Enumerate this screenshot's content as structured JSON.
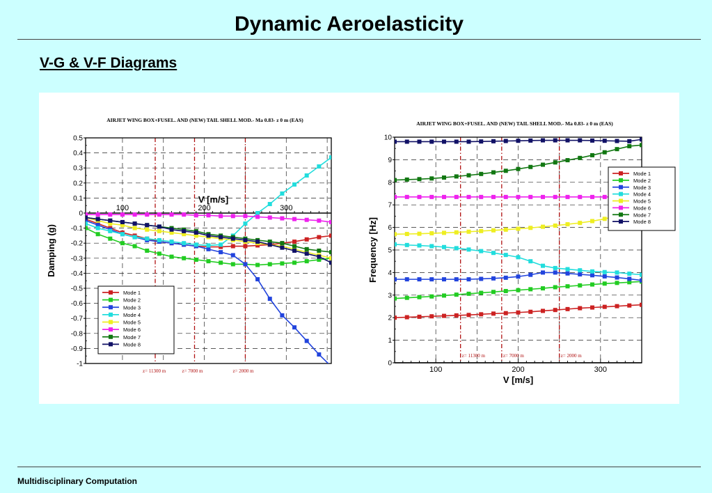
{
  "slide": {
    "title": "Dynamic Aeroelasticity",
    "subtitle": "V-G & V-F Diagrams",
    "footer": "Multidisciplinary Computation"
  },
  "chart_data": [
    {
      "type": "line",
      "title": "AIRJET WING BOX+FUSEL. AND (NEW) TAIL SHELL MOD.- Ma 0.83- z 0 m (EAS)",
      "xlabel": "V [m/s]",
      "ylabel": "Damping    (g)",
      "xlim": [
        55,
        355
      ],
      "ylim": [
        -1,
        0.5
      ],
      "xticks": [
        100,
        200,
        300
      ],
      "yticks": [
        0.5,
        0.4,
        0.3,
        0.2,
        0.1,
        0,
        -0.1,
        -0.2,
        -0.3,
        -0.4,
        -0.5,
        -0.6,
        -0.7,
        -0.8,
        -0.9,
        -1
      ],
      "ytick_labels": [
        "0.5",
        "0.4",
        "0.3",
        "0.2",
        "0.1",
        "0",
        "-0.1",
        "-0.2",
        "-0.3",
        "-0.4",
        "-0.5",
        "-0.6",
        "-0.7",
        "-0.8",
        "-0.9",
        "-1"
      ],
      "grid": true,
      "legend_position": "bottom-left",
      "altitude_lines": [
        {
          "x": 140,
          "label": "z= 11300 m"
        },
        {
          "x": 188,
          "label": "z= 7000 m"
        },
        {
          "x": 250,
          "label": "z= 2000 m"
        }
      ],
      "x": [
        55,
        70,
        85,
        100,
        115,
        130,
        145,
        160,
        175,
        190,
        205,
        220,
        235,
        250,
        265,
        280,
        295,
        310,
        325,
        340,
        355
      ],
      "series": [
        {
          "name": "Mode  1",
          "color": "#cc2222",
          "values": [
            -0.04,
            -0.07,
            -0.1,
            -0.13,
            -0.15,
            -0.17,
            -0.19,
            -0.2,
            -0.21,
            -0.22,
            -0.225,
            -0.225,
            -0.22,
            -0.22,
            -0.215,
            -0.21,
            -0.2,
            -0.19,
            -0.175,
            -0.16,
            -0.15
          ]
        },
        {
          "name": "Mode  2",
          "color": "#22cc22",
          "values": [
            -0.1,
            -0.14,
            -0.17,
            -0.2,
            -0.22,
            -0.25,
            -0.27,
            -0.29,
            -0.3,
            -0.31,
            -0.32,
            -0.33,
            -0.34,
            -0.34,
            -0.345,
            -0.34,
            -0.335,
            -0.33,
            -0.32,
            -0.31,
            -0.3
          ]
        },
        {
          "name": "Mode  3",
          "color": "#2244dd",
          "values": [
            -0.05,
            -0.08,
            -0.11,
            -0.14,
            -0.16,
            -0.18,
            -0.19,
            -0.2,
            -0.21,
            -0.22,
            -0.24,
            -0.26,
            -0.28,
            -0.34,
            -0.44,
            -0.57,
            -0.68,
            -0.76,
            -0.85,
            -0.94,
            -1.02
          ]
        },
        {
          "name": "Mode  4",
          "color": "#22dddd",
          "values": [
            -0.07,
            -0.1,
            -0.12,
            -0.14,
            -0.16,
            -0.17,
            -0.18,
            -0.19,
            -0.2,
            -0.21,
            -0.215,
            -0.21,
            -0.15,
            -0.07,
            0.0,
            0.06,
            0.13,
            0.19,
            0.25,
            0.31,
            0.37
          ]
        },
        {
          "name": "Mode  5",
          "color": "#eeee22",
          "values": [
            -0.03,
            -0.05,
            -0.07,
            -0.08,
            -0.1,
            -0.11,
            -0.12,
            -0.13,
            -0.14,
            -0.15,
            -0.16,
            -0.17,
            -0.18,
            -0.19,
            -0.2,
            -0.21,
            -0.22,
            -0.24,
            -0.26,
            -0.28,
            -0.3
          ]
        },
        {
          "name": "Mode  6",
          "color": "#ee22ee",
          "values": [
            -0.01,
            -0.01,
            -0.01,
            -0.01,
            -0.01,
            -0.01,
            -0.01,
            -0.01,
            -0.01,
            -0.015,
            -0.015,
            -0.02,
            -0.02,
            -0.02,
            -0.025,
            -0.03,
            -0.035,
            -0.04,
            -0.045,
            -0.05,
            -0.06
          ]
        },
        {
          "name": "Mode  7",
          "color": "#117711",
          "values": [
            -0.03,
            -0.04,
            -0.05,
            -0.06,
            -0.07,
            -0.08,
            -0.09,
            -0.1,
            -0.11,
            -0.12,
            -0.14,
            -0.15,
            -0.16,
            -0.17,
            -0.18,
            -0.19,
            -0.2,
            -0.22,
            -0.24,
            -0.25,
            -0.26
          ]
        },
        {
          "name": "Mode  8",
          "color": "#111166",
          "values": [
            -0.03,
            -0.04,
            -0.05,
            -0.06,
            -0.07,
            -0.08,
            -0.09,
            -0.11,
            -0.12,
            -0.13,
            -0.15,
            -0.16,
            -0.17,
            -0.18,
            -0.19,
            -0.21,
            -0.23,
            -0.25,
            -0.27,
            -0.29,
            -0.33
          ]
        }
      ]
    },
    {
      "type": "line",
      "title": "AIRJET WING BOX+FUSEL. AND (NEW) TAIL SHELL MOD.- Ma 0.83- z 0 m (EAS)",
      "xlabel": "V [m/s]",
      "ylabel": "Frequency [Hz]",
      "xlim": [
        50,
        350
      ],
      "ylim": [
        0,
        10
      ],
      "xticks": [
        100,
        200,
        300
      ],
      "yticks": [
        0,
        1,
        2,
        3,
        4,
        5,
        6,
        7,
        8,
        9,
        10
      ],
      "ytick_labels": [
        "0",
        "1",
        "2",
        "3",
        "4",
        "5",
        "6",
        "7",
        "8",
        "9",
        "10"
      ],
      "grid": true,
      "legend_position": "top-right",
      "altitude_lines": [
        {
          "x": 130,
          "label": "z= 11300 m"
        },
        {
          "x": 180,
          "label": "z= 7000 m"
        },
        {
          "x": 250,
          "label": "z= 2000 m"
        }
      ],
      "x": [
        50,
        65,
        80,
        95,
        110,
        125,
        140,
        155,
        170,
        185,
        200,
        215,
        230,
        245,
        260,
        275,
        290,
        305,
        320,
        335,
        350
      ],
      "series": [
        {
          "name": "Mode  1",
          "color": "#cc2222",
          "values": [
            2.0,
            2.02,
            2.04,
            2.06,
            2.08,
            2.1,
            2.12,
            2.15,
            2.18,
            2.2,
            2.23,
            2.26,
            2.3,
            2.34,
            2.38,
            2.42,
            2.45,
            2.48,
            2.51,
            2.54,
            2.57
          ]
        },
        {
          "name": "Mode  2",
          "color": "#22cc22",
          "values": [
            2.85,
            2.88,
            2.91,
            2.94,
            2.98,
            3.02,
            3.06,
            3.1,
            3.14,
            3.18,
            3.22,
            3.26,
            3.3,
            3.35,
            3.39,
            3.43,
            3.47,
            3.51,
            3.54,
            3.57,
            3.6
          ]
        },
        {
          "name": "Mode  3",
          "color": "#2244dd",
          "values": [
            3.7,
            3.7,
            3.7,
            3.7,
            3.7,
            3.7,
            3.7,
            3.72,
            3.74,
            3.77,
            3.82,
            3.9,
            4.0,
            4.0,
            3.96,
            3.92,
            3.88,
            3.83,
            3.78,
            3.72,
            3.65
          ]
        },
        {
          "name": "Mode  4",
          "color": "#22dddd",
          "values": [
            5.25,
            5.22,
            5.2,
            5.17,
            5.13,
            5.08,
            5.02,
            4.95,
            4.87,
            4.78,
            4.68,
            4.5,
            4.3,
            4.2,
            4.15,
            4.1,
            4.05,
            4.02,
            4.0,
            3.95,
            3.9
          ]
        },
        {
          "name": "Mode  5",
          "color": "#eeee22",
          "values": [
            5.7,
            5.71,
            5.72,
            5.74,
            5.76,
            5.78,
            5.81,
            5.84,
            5.87,
            5.9,
            5.94,
            5.98,
            6.03,
            6.08,
            6.14,
            6.2,
            6.28,
            6.38,
            6.5,
            6.62,
            6.75
          ]
        },
        {
          "name": "Mode  6",
          "color": "#ee22ee",
          "values": [
            7.35,
            7.35,
            7.35,
            7.35,
            7.35,
            7.35,
            7.35,
            7.35,
            7.35,
            7.35,
            7.35,
            7.35,
            7.35,
            7.35,
            7.35,
            7.35,
            7.35,
            7.35,
            7.35,
            7.35,
            7.35
          ]
        },
        {
          "name": "Mode  7",
          "color": "#117711",
          "values": [
            8.1,
            8.12,
            8.14,
            8.17,
            8.21,
            8.26,
            8.31,
            8.37,
            8.44,
            8.51,
            8.59,
            8.68,
            8.78,
            8.88,
            8.98,
            9.08,
            9.2,
            9.33,
            9.47,
            9.6,
            9.65
          ]
        },
        {
          "name": "Mode  8",
          "color": "#111166",
          "values": [
            9.8,
            9.8,
            9.8,
            9.8,
            9.8,
            9.8,
            9.8,
            9.81,
            9.82,
            9.83,
            9.84,
            9.85,
            9.86,
            9.86,
            9.86,
            9.86,
            9.85,
            9.84,
            9.83,
            9.82,
            9.9
          ]
        }
      ]
    }
  ]
}
